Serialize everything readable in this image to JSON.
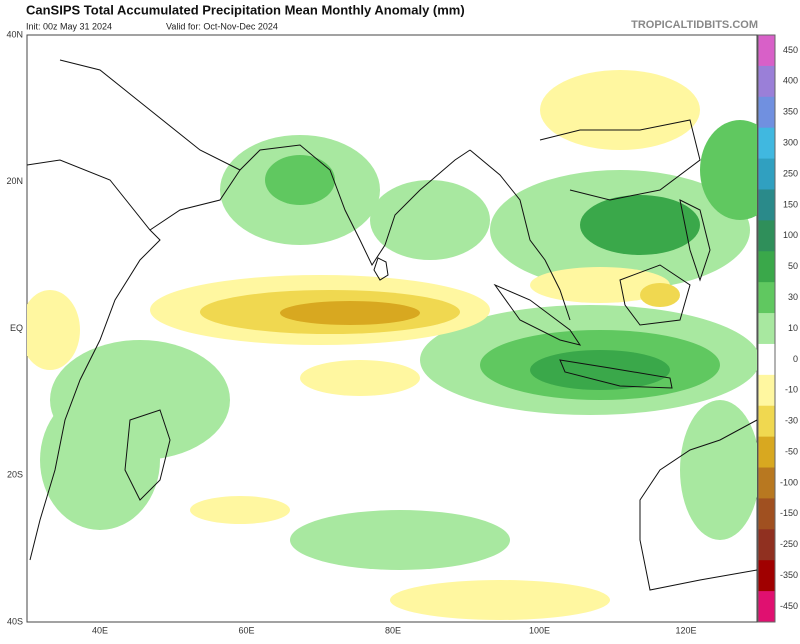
{
  "header": {
    "title": "CanSIPS Total Accumulated Precipitation Mean Monthly Anomaly (mm)",
    "init": "Init: 00z May 31 2024",
    "valid": "Valid for: Oct-Nov-Dec 2024",
    "watermark": "TROPICALTIDBITS.COM"
  },
  "map": {
    "lat_labels": [
      "40N",
      "20N",
      "EQ",
      "20S",
      "40S"
    ],
    "lon_labels": [
      "40E",
      "60E",
      "80E",
      "100E",
      "120E"
    ]
  },
  "colorbar": {
    "levels": [
      450,
      400,
      350,
      300,
      250,
      150,
      100,
      50,
      30,
      10,
      0,
      -10,
      -30,
      -50,
      -100,
      -150,
      -250,
      -350,
      -450
    ],
    "colors": [
      "#d860c8",
      "#9a7fd8",
      "#7090e0",
      "#40b8e0",
      "#30a0c0",
      "#2a8a8a",
      "#2f8f5a",
      "#3aa84a",
      "#60c860",
      "#a8e8a0",
      "#ffffff",
      "#fff7a0",
      "#f0d850",
      "#d8a820",
      "#b87820",
      "#a05020",
      "#903020",
      "#a00000",
      "#e01070"
    ]
  }
}
